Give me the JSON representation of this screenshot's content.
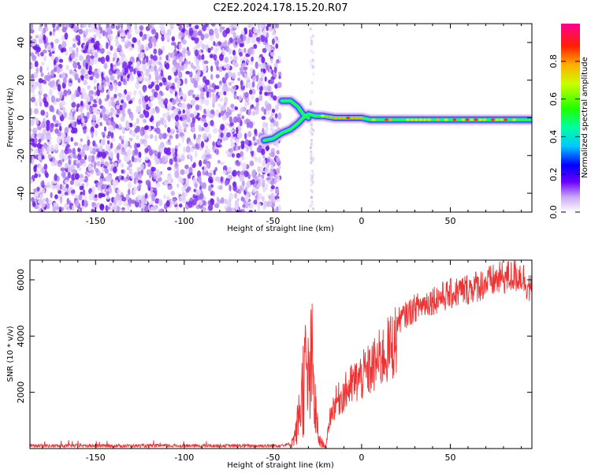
{
  "title": "C2E2.2024.178.15.20.R07",
  "charts": [
    {
      "id": "spectrogram",
      "type": "heatmap",
      "xlabel": "Height of straight line (km)",
      "ylabel": "Frequency (Hz)",
      "xlim": [
        -187,
        96
      ],
      "ylim": [
        -50,
        50
      ],
      "xticks": [
        -150,
        -100,
        -50,
        0,
        50
      ],
      "yticks": [
        -40,
        -20,
        0,
        20,
        40
      ],
      "noise_region_x": [
        -187,
        -46
      ],
      "noise_gap_x": [
        -30,
        -26
      ],
      "signal_ridge": [
        {
          "x": -55,
          "y": -12
        },
        {
          "x": -50,
          "y": -11
        },
        {
          "x": -45,
          "y": -8
        },
        {
          "x": -40,
          "y": -6
        },
        {
          "x": -36,
          "y": -3
        },
        {
          "x": -33,
          "y": 0
        },
        {
          "x": -30,
          "y": 2
        },
        {
          "x": -26,
          "y": 1
        },
        {
          "x": -22,
          "y": 1
        },
        {
          "x": -15,
          "y": 0
        },
        {
          "x": -5,
          "y": 0
        },
        {
          "x": 0,
          "y": 0
        },
        {
          "x": 5,
          "y": -1
        },
        {
          "x": 15,
          "y": -1
        },
        {
          "x": 30,
          "y": -1
        },
        {
          "x": 50,
          "y": -1
        },
        {
          "x": 70,
          "y": -1
        },
        {
          "x": 96,
          "y": -1
        }
      ],
      "upper_branch": [
        {
          "x": -45,
          "y": 9
        },
        {
          "x": -40,
          "y": 9
        },
        {
          "x": -36,
          "y": 6
        },
        {
          "x": -33,
          "y": 2
        },
        {
          "x": -30,
          "y": 0
        }
      ],
      "colorbar": {
        "label": "Normalized spectral amplitude",
        "ticks": [
          0.0,
          0.2,
          0.4,
          0.6,
          0.8
        ],
        "range": [
          0,
          1
        ]
      }
    },
    {
      "id": "snr",
      "type": "line",
      "xlabel": "Height of straight line (km)",
      "ylabel": "SNR (10 * v/v)",
      "xlim": [
        -187,
        96
      ],
      "ylim": [
        0,
        6700
      ],
      "xticks": [
        -150,
        -100,
        -50,
        0,
        50
      ],
      "yticks": [
        2000,
        4000,
        6000
      ],
      "color": "#ee3333",
      "series_envelope": [
        {
          "x": -187,
          "y": 100
        },
        {
          "x": -150,
          "y": 100
        },
        {
          "x": -100,
          "y": 100
        },
        {
          "x": -50,
          "y": 100
        },
        {
          "x": -40,
          "y": 150
        },
        {
          "x": -37,
          "y": 800
        },
        {
          "x": -34,
          "y": 2500
        },
        {
          "x": -32,
          "y": 3800
        },
        {
          "x": -30,
          "y": 3200
        },
        {
          "x": -28,
          "y": 4200
        },
        {
          "x": -26,
          "y": 1800
        },
        {
          "x": -24,
          "y": 400
        },
        {
          "x": -20,
          "y": 100
        },
        {
          "x": -18,
          "y": 1300
        },
        {
          "x": -15,
          "y": 1900
        },
        {
          "x": -10,
          "y": 2300
        },
        {
          "x": -5,
          "y": 2700
        },
        {
          "x": 0,
          "y": 3000
        },
        {
          "x": 5,
          "y": 3300
        },
        {
          "x": 10,
          "y": 3700
        },
        {
          "x": 15,
          "y": 4100
        },
        {
          "x": 20,
          "y": 4600
        },
        {
          "x": 30,
          "y": 5100
        },
        {
          "x": 40,
          "y": 5400
        },
        {
          "x": 50,
          "y": 5600
        },
        {
          "x": 60,
          "y": 5800
        },
        {
          "x": 70,
          "y": 6000
        },
        {
          "x": 80,
          "y": 6200
        },
        {
          "x": 90,
          "y": 6300
        },
        {
          "x": 96,
          "y": 5700
        }
      ]
    }
  ]
}
